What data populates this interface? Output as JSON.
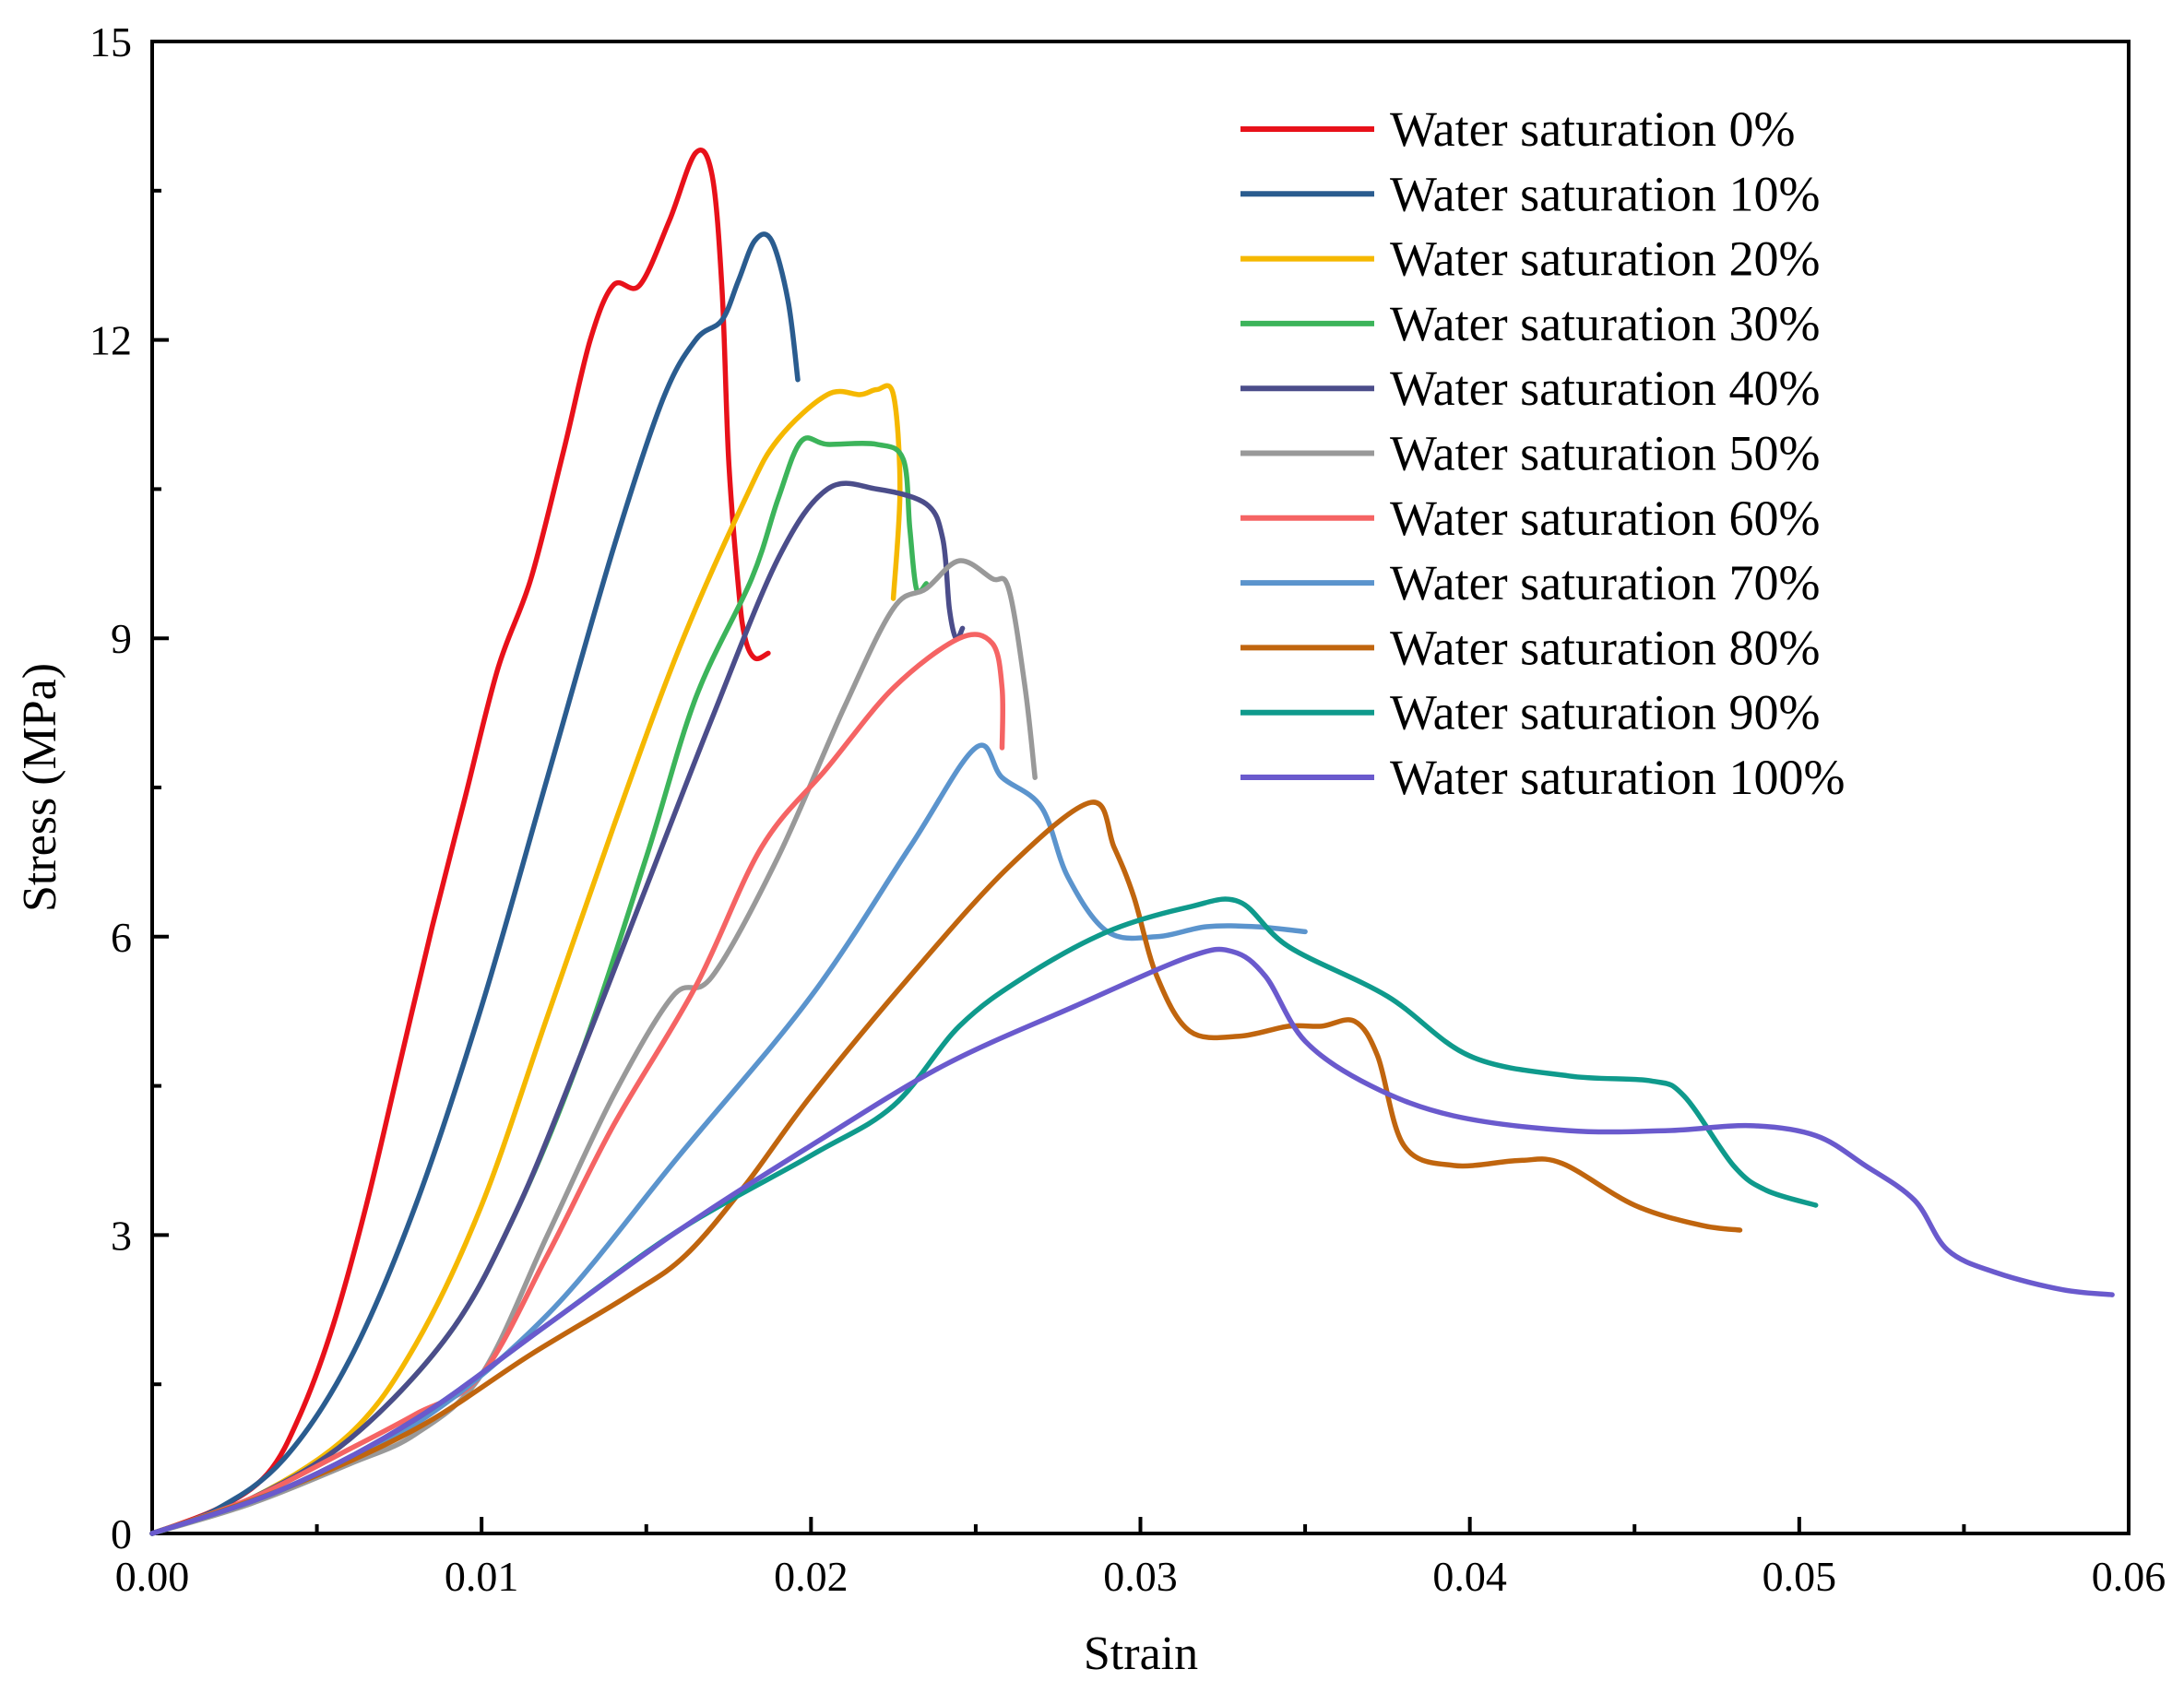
{
  "chart_data": {
    "type": "line",
    "title": "",
    "xlabel": "Strain",
    "ylabel": "Stress (MPa)",
    "xlim": [
      0,
      0.06
    ],
    "ylim": [
      0,
      15
    ],
    "xticks": [
      "0.00",
      "0.01",
      "0.02",
      "0.03",
      "0.04",
      "0.05",
      "0.06"
    ],
    "yticks": [
      "0",
      "3",
      "6",
      "9",
      "12",
      "15"
    ],
    "grid": false,
    "legend_position": "top-right",
    "series": [
      {
        "name": "Water saturation 0%",
        "color": "#e8111a",
        "points": [
          [
            0,
            0
          ],
          [
            0.002,
            0.25
          ],
          [
            0.0035,
            0.6
          ],
          [
            0.0045,
            1.2
          ],
          [
            0.0055,
            2.1
          ],
          [
            0.0065,
            3.3
          ],
          [
            0.0075,
            4.7
          ],
          [
            0.0085,
            6.1
          ],
          [
            0.0095,
            7.4
          ],
          [
            0.0105,
            8.7
          ],
          [
            0.0115,
            9.6
          ],
          [
            0.0125,
            10.9
          ],
          [
            0.0133,
            12.0
          ],
          [
            0.014,
            12.55
          ],
          [
            0.0148,
            12.55
          ],
          [
            0.0157,
            13.2
          ],
          [
            0.0165,
            13.88
          ],
          [
            0.017,
            13.65
          ],
          [
            0.0173,
            12.5
          ],
          [
            0.0175,
            10.8
          ],
          [
            0.0178,
            9.5
          ],
          [
            0.018,
            9.0
          ],
          [
            0.0183,
            8.8
          ],
          [
            0.0187,
            8.85
          ]
        ]
      },
      {
        "name": "Water saturation 10%",
        "color": "#2a5c8f",
        "points": [
          [
            0,
            0
          ],
          [
            0.002,
            0.25
          ],
          [
            0.004,
            0.75
          ],
          [
            0.006,
            1.75
          ],
          [
            0.008,
            3.3
          ],
          [
            0.01,
            5.3
          ],
          [
            0.012,
            7.6
          ],
          [
            0.014,
            9.9
          ],
          [
            0.0155,
            11.4
          ],
          [
            0.0165,
            12.0
          ],
          [
            0.0173,
            12.2
          ],
          [
            0.0178,
            12.6
          ],
          [
            0.0183,
            13.0
          ],
          [
            0.0188,
            13.0
          ],
          [
            0.0193,
            12.4
          ],
          [
            0.0196,
            11.6
          ]
        ]
      },
      {
        "name": "Water saturation 20%",
        "color": "#f5b800",
        "points": [
          [
            0,
            0
          ],
          [
            0.003,
            0.35
          ],
          [
            0.006,
            1.0
          ],
          [
            0.008,
            1.9
          ],
          [
            0.01,
            3.3
          ],
          [
            0.012,
            5.2
          ],
          [
            0.014,
            7.1
          ],
          [
            0.016,
            8.9
          ],
          [
            0.018,
            10.4
          ],
          [
            0.019,
            11.0
          ],
          [
            0.0205,
            11.45
          ],
          [
            0.0215,
            11.45
          ],
          [
            0.022,
            11.5
          ],
          [
            0.0225,
            11.45
          ],
          [
            0.0227,
            10.5
          ],
          [
            0.0225,
            9.4
          ]
        ]
      },
      {
        "name": "Water saturation 30%",
        "color": "#3cb45a",
        "points": [
          [
            0,
            0
          ],
          [
            0.003,
            0.35
          ],
          [
            0.006,
            0.95
          ],
          [
            0.009,
            2.0
          ],
          [
            0.011,
            3.2
          ],
          [
            0.013,
            4.8
          ],
          [
            0.015,
            6.8
          ],
          [
            0.0165,
            8.4
          ],
          [
            0.0182,
            9.6
          ],
          [
            0.019,
            10.4
          ],
          [
            0.0197,
            10.98
          ],
          [
            0.0205,
            10.95
          ],
          [
            0.022,
            10.95
          ],
          [
            0.0228,
            10.8
          ],
          [
            0.023,
            10.1
          ],
          [
            0.0232,
            9.5
          ],
          [
            0.0235,
            9.55
          ]
        ]
      },
      {
        "name": "Water saturation 40%",
        "color": "#4b4d8a",
        "points": [
          [
            0,
            0
          ],
          [
            0.003,
            0.35
          ],
          [
            0.006,
            0.95
          ],
          [
            0.009,
            2.0
          ],
          [
            0.011,
            3.2
          ],
          [
            0.013,
            4.8
          ],
          [
            0.015,
            6.5
          ],
          [
            0.017,
            8.2
          ],
          [
            0.019,
            9.8
          ],
          [
            0.0205,
            10.5
          ],
          [
            0.022,
            10.5
          ],
          [
            0.0235,
            10.35
          ],
          [
            0.024,
            10.0
          ],
          [
            0.0242,
            9.3
          ],
          [
            0.0244,
            9.0
          ],
          [
            0.0246,
            9.1
          ]
        ]
      },
      {
        "name": "Water saturation 50%",
        "color": "#999999",
        "points": [
          [
            0,
            0
          ],
          [
            0.003,
            0.3
          ],
          [
            0.006,
            0.7
          ],
          [
            0.008,
            1.0
          ],
          [
            0.01,
            1.6
          ],
          [
            0.012,
            3.0
          ],
          [
            0.014,
            4.4
          ],
          [
            0.0158,
            5.4
          ],
          [
            0.017,
            5.6
          ],
          [
            0.019,
            6.8
          ],
          [
            0.021,
            8.3
          ],
          [
            0.0225,
            9.3
          ],
          [
            0.0235,
            9.5
          ],
          [
            0.0245,
            9.78
          ],
          [
            0.0255,
            9.6
          ],
          [
            0.026,
            9.5
          ],
          [
            0.0265,
            8.5
          ],
          [
            0.0268,
            7.6
          ]
        ]
      },
      {
        "name": "Water saturation 60%",
        "color": "#f56464",
        "points": [
          [
            0,
            0
          ],
          [
            0.003,
            0.35
          ],
          [
            0.006,
            0.85
          ],
          [
            0.008,
            1.2
          ],
          [
            0.01,
            1.6
          ],
          [
            0.012,
            2.8
          ],
          [
            0.014,
            4.1
          ],
          [
            0.0165,
            5.5
          ],
          [
            0.0185,
            6.9
          ],
          [
            0.0205,
            7.7
          ],
          [
            0.0225,
            8.5
          ],
          [
            0.0245,
            9.0
          ],
          [
            0.0255,
            8.95
          ],
          [
            0.0258,
            8.5
          ],
          [
            0.0258,
            7.9
          ]
        ]
      },
      {
        "name": "Water saturation 70%",
        "color": "#5b94cd",
        "points": [
          [
            0,
            0
          ],
          [
            0.004,
            0.45
          ],
          [
            0.008,
            1.1
          ],
          [
            0.012,
            2.2
          ],
          [
            0.016,
            3.8
          ],
          [
            0.02,
            5.4
          ],
          [
            0.023,
            6.9
          ],
          [
            0.025,
            7.9
          ],
          [
            0.0258,
            7.6
          ],
          [
            0.027,
            7.3
          ],
          [
            0.0278,
            6.6
          ],
          [
            0.029,
            6.05
          ],
          [
            0.0305,
            6.0
          ],
          [
            0.032,
            6.1
          ],
          [
            0.0335,
            6.1
          ],
          [
            0.035,
            6.05
          ]
        ]
      },
      {
        "name": "Water saturation 80%",
        "color": "#c0650e",
        "points": [
          [
            0,
            0
          ],
          [
            0.004,
            0.45
          ],
          [
            0.008,
            1.05
          ],
          [
            0.0115,
            1.8
          ],
          [
            0.0145,
            2.4
          ],
          [
            0.0162,
            2.8
          ],
          [
            0.018,
            3.5
          ],
          [
            0.02,
            4.4
          ],
          [
            0.023,
            5.6
          ],
          [
            0.026,
            6.7
          ],
          [
            0.0285,
            7.35
          ],
          [
            0.0292,
            6.9
          ],
          [
            0.0298,
            6.4
          ],
          [
            0.0305,
            5.6
          ],
          [
            0.0315,
            5.05
          ],
          [
            0.033,
            5.0
          ],
          [
            0.0345,
            5.1
          ],
          [
            0.0355,
            5.1
          ],
          [
            0.0365,
            5.15
          ],
          [
            0.0372,
            4.8
          ],
          [
            0.038,
            3.9
          ],
          [
            0.0395,
            3.7
          ],
          [
            0.0415,
            3.75
          ],
          [
            0.0428,
            3.72
          ],
          [
            0.045,
            3.3
          ],
          [
            0.047,
            3.1
          ],
          [
            0.0482,
            3.05
          ]
        ]
      },
      {
        "name": "Water saturation 90%",
        "color": "#0f9a8c",
        "points": [
          [
            0,
            0
          ],
          [
            0.004,
            0.45
          ],
          [
            0.008,
            1.15
          ],
          [
            0.012,
            2.1
          ],
          [
            0.016,
            3.05
          ],
          [
            0.02,
            3.8
          ],
          [
            0.0225,
            4.3
          ],
          [
            0.0245,
            5.1
          ],
          [
            0.0265,
            5.6
          ],
          [
            0.029,
            6.05
          ],
          [
            0.0315,
            6.3
          ],
          [
            0.033,
            6.35
          ],
          [
            0.0345,
            5.9
          ],
          [
            0.0375,
            5.4
          ],
          [
            0.04,
            4.8
          ],
          [
            0.043,
            4.6
          ],
          [
            0.0455,
            4.55
          ],
          [
            0.0465,
            4.4
          ],
          [
            0.048,
            3.7
          ],
          [
            0.049,
            3.45
          ],
          [
            0.0505,
            3.3
          ]
        ]
      },
      {
        "name": "Water saturation 100%",
        "color": "#6a5acd",
        "points": [
          [
            0,
            0
          ],
          [
            0.004,
            0.45
          ],
          [
            0.008,
            1.15
          ],
          [
            0.012,
            2.1
          ],
          [
            0.016,
            3.05
          ],
          [
            0.02,
            3.9
          ],
          [
            0.024,
            4.7
          ],
          [
            0.028,
            5.3
          ],
          [
            0.0315,
            5.8
          ],
          [
            0.0328,
            5.85
          ],
          [
            0.0338,
            5.6
          ],
          [
            0.035,
            4.95
          ],
          [
            0.037,
            4.5
          ],
          [
            0.0395,
            4.2
          ],
          [
            0.043,
            4.05
          ],
          [
            0.046,
            4.05
          ],
          [
            0.0485,
            4.1
          ],
          [
            0.0505,
            4.0
          ],
          [
            0.052,
            3.7
          ],
          [
            0.0535,
            3.35
          ],
          [
            0.0545,
            2.85
          ],
          [
            0.056,
            2.62
          ],
          [
            0.058,
            2.45
          ],
          [
            0.0595,
            2.4
          ]
        ]
      }
    ]
  }
}
